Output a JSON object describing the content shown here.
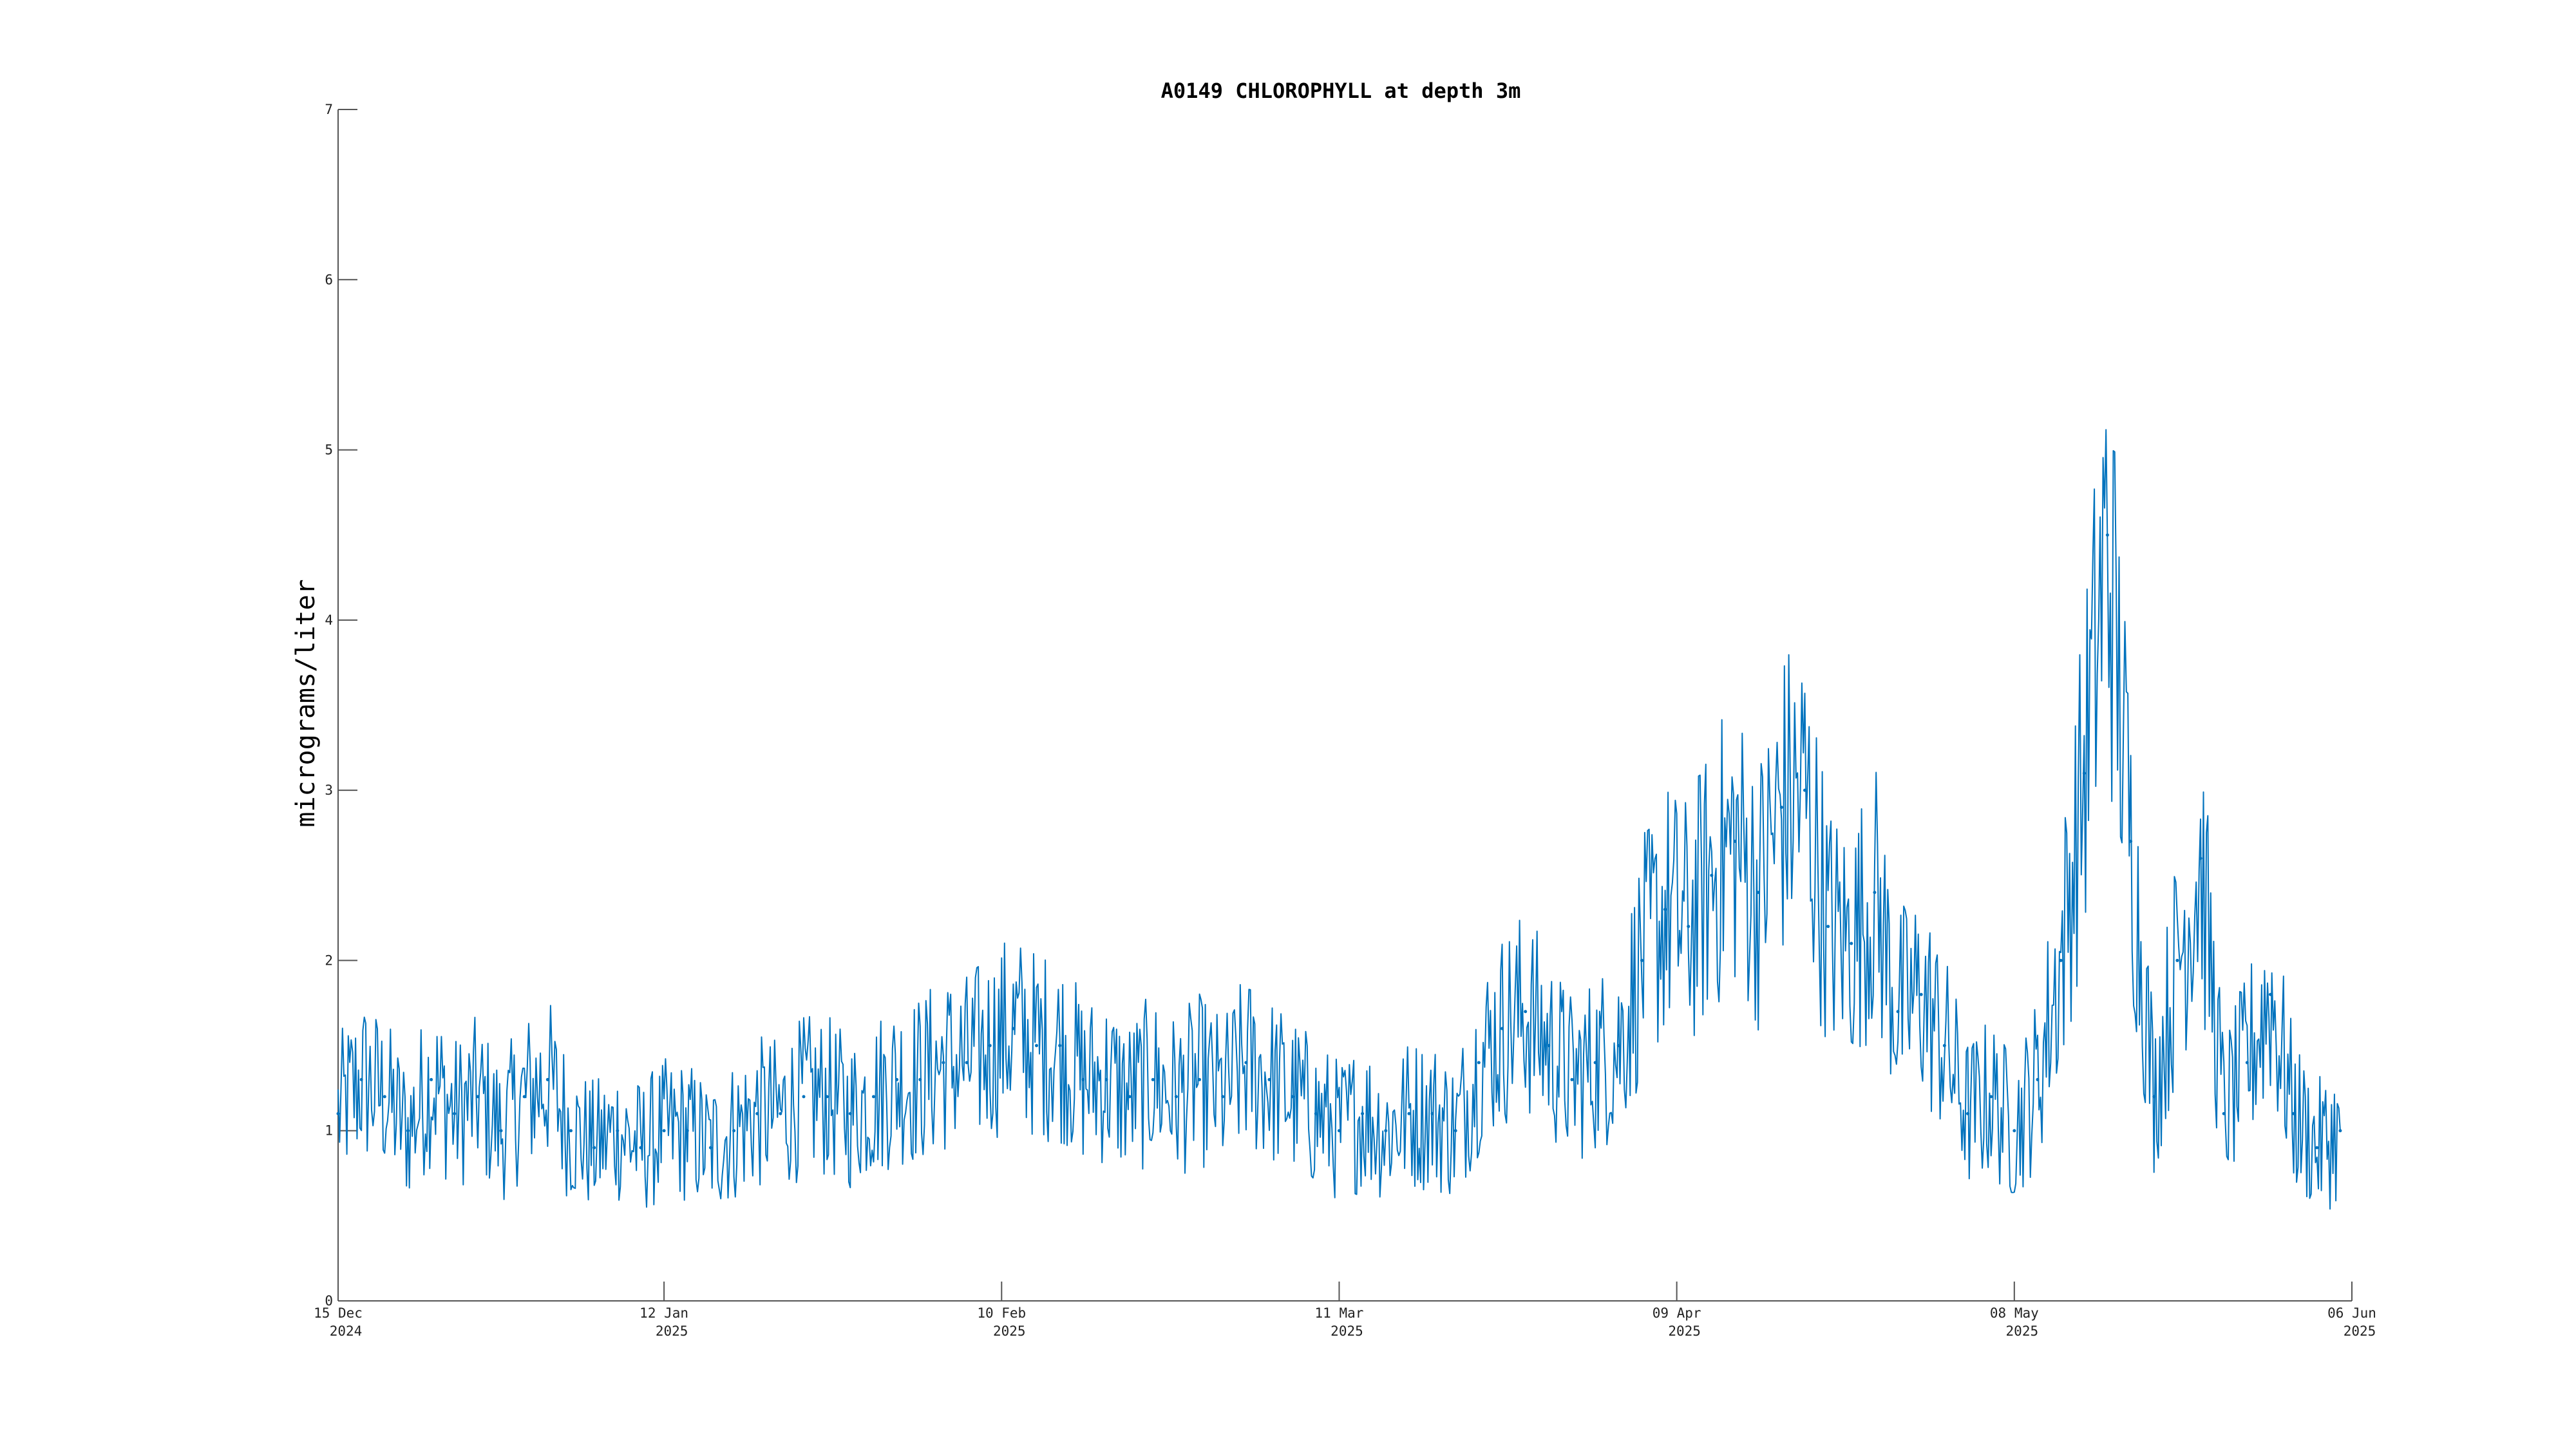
{
  "chart_data": {
    "type": "line",
    "title": "A0149 CHLOROPHYLL at depth 3m",
    "xlabel": "",
    "ylabel": "micrograms/liter",
    "ylim": [
      0,
      7
    ],
    "yticks": [
      0,
      1,
      2,
      3,
      4,
      5,
      6,
      7
    ],
    "xlim": [
      "2024-12-15",
      "2025-06-06"
    ],
    "xticks": [
      {
        "date": "2024-12-15",
        "line1": "15 Dec",
        "line2": "2024"
      },
      {
        "date": "2025-01-12",
        "line1": "12 Jan",
        "line2": "2025"
      },
      {
        "date": "2025-02-10",
        "line1": "10 Feb",
        "line2": "2025"
      },
      {
        "date": "2025-03-11",
        "line1": "11 Mar",
        "line2": "2025"
      },
      {
        "date": "2025-04-09",
        "line1": "09 Apr",
        "line2": "2025"
      },
      {
        "date": "2025-05-08",
        "line1": "08 May",
        "line2": "2025"
      },
      {
        "date": "2025-06-06",
        "line1": "06 Jun",
        "line2": "2025"
      }
    ],
    "grid": false,
    "color": "#0072BD",
    "series": [
      {
        "x": [
          "2024-12-15",
          "2024-12-17",
          "2024-12-19",
          "2024-12-21",
          "2024-12-23",
          "2024-12-25",
          "2024-12-27",
          "2024-12-29",
          "2024-12-31",
          "2025-01-02",
          "2025-01-04",
          "2025-01-06",
          "2025-01-08",
          "2025-01-10",
          "2025-01-12",
          "2025-01-14",
          "2025-01-16",
          "2025-01-18",
          "2025-01-20",
          "2025-01-22",
          "2025-01-24",
          "2025-01-26",
          "2025-01-28",
          "2025-01-30",
          "2025-02-01",
          "2025-02-03",
          "2025-02-05",
          "2025-02-07",
          "2025-02-09",
          "2025-02-11",
          "2025-02-13",
          "2025-02-15",
          "2025-02-17",
          "2025-02-19",
          "2025-02-21",
          "2025-02-23",
          "2025-02-25",
          "2025-02-27",
          "2025-03-01",
          "2025-03-03",
          "2025-03-05",
          "2025-03-07",
          "2025-03-09",
          "2025-03-11",
          "2025-03-13",
          "2025-03-15",
          "2025-03-17",
          "2025-03-19",
          "2025-03-21",
          "2025-03-23",
          "2025-03-25",
          "2025-03-27",
          "2025-03-29",
          "2025-03-31",
          "2025-04-02",
          "2025-04-04",
          "2025-04-06",
          "2025-04-08",
          "2025-04-10",
          "2025-04-12",
          "2025-04-14",
          "2025-04-16",
          "2025-04-18",
          "2025-04-20",
          "2025-04-22",
          "2025-04-24",
          "2025-04-26",
          "2025-04-28",
          "2025-04-30",
          "2025-05-02",
          "2025-05-04",
          "2025-05-06",
          "2025-05-08",
          "2025-05-10",
          "2025-05-12",
          "2025-05-14",
          "2025-05-16",
          "2025-05-18",
          "2025-05-20",
          "2025-05-22",
          "2025-05-24",
          "2025-05-26",
          "2025-05-28",
          "2025-05-30",
          "2025-06-01",
          "2025-06-03",
          "2025-06-05"
        ],
        "y": [
          1.1,
          1.3,
          1.2,
          1.0,
          1.3,
          1.1,
          1.2,
          1.0,
          1.2,
          1.3,
          1.0,
          0.9,
          1.0,
          0.9,
          1.0,
          1.0,
          0.9,
          1.0,
          1.1,
          1.1,
          1.2,
          1.2,
          1.1,
          1.2,
          1.3,
          1.3,
          1.4,
          1.4,
          1.5,
          1.6,
          1.5,
          1.5,
          1.3,
          1.3,
          1.2,
          1.3,
          1.2,
          1.3,
          1.2,
          1.4,
          1.3,
          1.2,
          1.1,
          1.0,
          1.1,
          1.0,
          1.1,
          1.1,
          1.0,
          1.4,
          1.6,
          1.7,
          1.5,
          1.3,
          1.4,
          1.5,
          2.0,
          2.3,
          2.2,
          2.5,
          2.7,
          2.4,
          2.9,
          3.0,
          2.2,
          2.1,
          2.4,
          1.7,
          1.8,
          1.5,
          1.1,
          1.2,
          1.0,
          1.3,
          2.0,
          3.1,
          4.5,
          2.7,
          1.2,
          2.0,
          2.6,
          1.1,
          1.4,
          1.8,
          1.1,
          0.9,
          1.0
        ]
      }
    ]
  }
}
